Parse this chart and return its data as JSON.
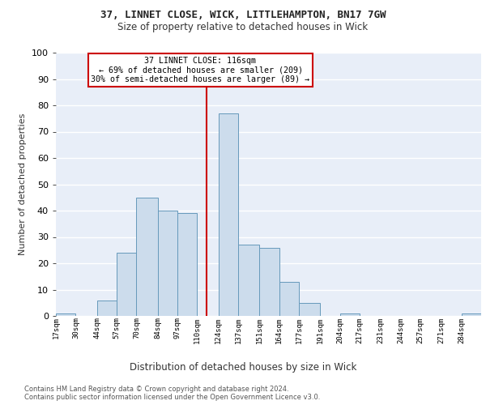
{
  "title1": "37, LINNET CLOSE, WICK, LITTLEHAMPTON, BN17 7GW",
  "title2": "Size of property relative to detached houses in Wick",
  "xlabel": "Distribution of detached houses by size in Wick",
  "ylabel": "Number of detached properties",
  "bar_color": "#ccdcec",
  "bar_edge_color": "#6699bb",
  "background_color": "#e8eef8",
  "vline_color": "#cc0000",
  "annotation_text": "37 LINNET CLOSE: 116sqm\n← 69% of detached houses are smaller (209)\n30% of semi-detached houses are larger (89) →",
  "annotation_box_color": "#cc0000",
  "bin_labels": [
    "17sqm",
    "30sqm",
    "44sqm",
    "57sqm",
    "70sqm",
    "84sqm",
    "97sqm",
    "110sqm",
    "124sqm",
    "137sqm",
    "151sqm",
    "164sqm",
    "177sqm",
    "191sqm",
    "204sqm",
    "217sqm",
    "231sqm",
    "244sqm",
    "257sqm",
    "271sqm",
    "284sqm"
  ],
  "bar_values": [
    1,
    0,
    6,
    24,
    45,
    40,
    39,
    0,
    77,
    27,
    26,
    13,
    5,
    0,
    1,
    0,
    0,
    0,
    0,
    0,
    1
  ],
  "bin_edges": [
    17,
    30,
    44,
    57,
    70,
    84,
    97,
    110,
    124,
    137,
    151,
    164,
    177,
    191,
    204,
    217,
    231,
    244,
    257,
    271,
    284,
    297
  ],
  "vline_x": 116,
  "ylim": [
    0,
    100
  ],
  "yticks": [
    0,
    10,
    20,
    30,
    40,
    50,
    60,
    70,
    80,
    90,
    100
  ],
  "footnote1": "Contains HM Land Registry data © Crown copyright and database right 2024.",
  "footnote2": "Contains public sector information licensed under the Open Government Licence v3.0."
}
